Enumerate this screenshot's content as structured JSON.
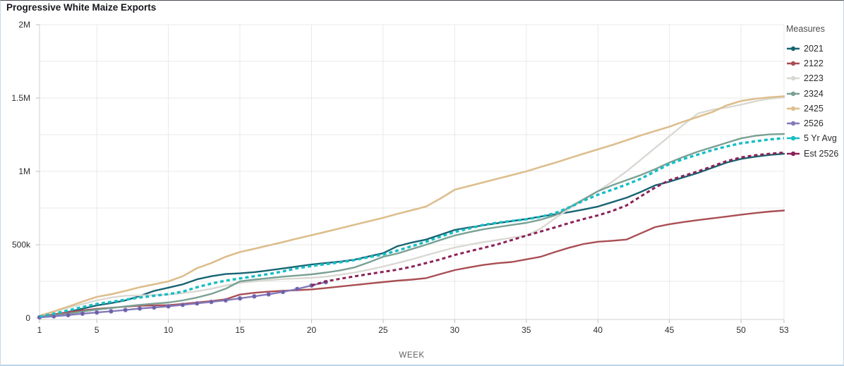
{
  "title": "Progressive White Maize Exports",
  "legend": {
    "title": "Measures",
    "position": "right"
  },
  "chart_data": {
    "type": "line",
    "title": "Progressive White Maize Exports",
    "xlabel": "WEEK",
    "ylabel": "",
    "xlim": [
      1,
      53
    ],
    "ylim": [
      0,
      2000000
    ],
    "grid": true,
    "y_minor_step": 250000,
    "x_gridline_weeks": [
      5,
      10,
      15,
      20,
      25,
      30,
      35,
      40,
      45,
      50,
      53
    ],
    "x_ticks": [
      1,
      5,
      10,
      15,
      20,
      25,
      30,
      35,
      40,
      45,
      50,
      53
    ],
    "y_ticks": [
      {
        "v": 0,
        "label": "0"
      },
      {
        "v": 500000,
        "label": "500k"
      },
      {
        "v": 1000000,
        "label": "1M"
      },
      {
        "v": 1500000,
        "label": "1.5M"
      },
      {
        "v": 2000000,
        "label": "2M"
      }
    ],
    "legend_position": "right",
    "series": [
      {
        "name": "2021",
        "color": "#176472",
        "width": 2.4,
        "dash": "",
        "marker": "",
        "x_start": 1,
        "values": [
          8000,
          22000,
          42000,
          64000,
          86000,
          102000,
          120000,
          150000,
          185000,
          207000,
          230000,
          264000,
          285000,
          300000,
          305000,
          313000,
          325000,
          338000,
          352000,
          365000,
          375000,
          385000,
          398000,
          420000,
          442000,
          490000,
          515000,
          535000,
          568000,
          601000,
          618000,
          632000,
          647000,
          661000,
          675000,
          692000,
          707000,
          722000,
          740000,
          760000,
          790000,
          820000,
          860000,
          905000,
          930000,
          960000,
          990000,
          1025000,
          1060000,
          1085000,
          1100000,
          1112000,
          1120000
        ]
      },
      {
        "name": "2122",
        "color": "#a94e54",
        "width": 2.4,
        "dash": "",
        "marker": "",
        "x_start": 1,
        "values": [
          10000,
          25000,
          40000,
          52000,
          63000,
          70000,
          78000,
          84000,
          86000,
          88000,
          96000,
          106000,
          116000,
          128000,
          160000,
          172000,
          180000,
          186000,
          190000,
          195000,
          205000,
          215000,
          225000,
          235000,
          245000,
          255000,
          262000,
          272000,
          300000,
          327000,
          345000,
          362000,
          374000,
          382000,
          400000,
          418000,
          450000,
          480000,
          505000,
          520000,
          527000,
          535000,
          578000,
          620000,
          640000,
          655000,
          668000,
          680000,
          692000,
          705000,
          716000,
          726000,
          733000
        ]
      },
      {
        "name": "2223",
        "color": "#d9d8d3",
        "width": 2.4,
        "dash": "",
        "marker": "",
        "x_start": 1,
        "values": [
          15000,
          45000,
          70000,
          95000,
          120000,
          140000,
          152000,
          155000,
          157000,
          160000,
          170000,
          182000,
          200000,
          222000,
          240000,
          250000,
          258000,
          266000,
          270000,
          274000,
          282000,
          295000,
          310000,
          330000,
          351000,
          375000,
          400000,
          428000,
          455000,
          481000,
          500000,
          518000,
          532000,
          548000,
          562000,
          610000,
          680000,
          745000,
          805000,
          865000,
          930000,
          1000000,
          1080000,
          1160000,
          1240000,
          1320000,
          1395000,
          1420000,
          1435000,
          1455000,
          1478000,
          1495000,
          1505000
        ]
      },
      {
        "name": "2324",
        "color": "#7aa094",
        "width": 2.4,
        "dash": "",
        "marker": "",
        "x_start": 1,
        "values": [
          8000,
          18000,
          30000,
          44000,
          58000,
          68000,
          80000,
          90000,
          98000,
          106000,
          120000,
          140000,
          165000,
          200000,
          250000,
          262000,
          272000,
          282000,
          290000,
          298000,
          310000,
          325000,
          345000,
          380000,
          418000,
          440000,
          470000,
          500000,
          532000,
          563000,
          585000,
          605000,
          620000,
          635000,
          649000,
          670000,
          700000,
          755000,
          810000,
          865000,
          905000,
          940000,
          975000,
          1015000,
          1060000,
          1100000,
          1135000,
          1165000,
          1195000,
          1225000,
          1243000,
          1252000,
          1255000
        ]
      },
      {
        "name": "2425",
        "color": "#ddbe8d",
        "width": 2.6,
        "dash": "",
        "marker": "",
        "x_start": 1,
        "values": [
          15000,
          45000,
          78000,
          112000,
          144000,
          162000,
          185000,
          210000,
          230000,
          250000,
          285000,
          340000,
          375000,
          418000,
          450000,
          472000,
          495000,
          518000,
          542000,
          565000,
          588000,
          612000,
          636000,
          660000,
          683000,
          710000,
          735000,
          760000,
          815000,
          875000,
          900000,
          925000,
          950000,
          975000,
          1000000,
          1030000,
          1058000,
          1090000,
          1120000,
          1150000,
          1180000,
          1212000,
          1245000,
          1275000,
          1305000,
          1340000,
          1372000,
          1405000,
          1450000,
          1480000,
          1495000,
          1505000,
          1512000
        ]
      },
      {
        "name": "2526",
        "color": "#8479ba",
        "width": 2.4,
        "dash": "",
        "marker": "circle",
        "marker_fill": "#6a5da6",
        "x_start": 1,
        "values": [
          5000,
          12000,
          20000,
          30000,
          38000,
          46000,
          55000,
          65000,
          72000,
          80000,
          90000,
          100000,
          110000,
          121000,
          134000,
          148000,
          162000,
          178000,
          198000,
          222000,
          245000
        ]
      },
      {
        "name": "5 Yr Avg",
        "color": "#17bec6",
        "width": 3.4,
        "dash": "5 4",
        "marker": "",
        "x_start": 1,
        "values": [
          10000,
          30000,
          52000,
          75000,
          96000,
          110000,
          125000,
          140000,
          152000,
          163000,
          180000,
          210000,
          235000,
          255000,
          270000,
          285000,
          300000,
          318000,
          340000,
          355000,
          368000,
          380000,
          395000,
          415000,
          433000,
          460000,
          490000,
          520000,
          555000,
          587000,
          610000,
          635000,
          650000,
          662000,
          673000,
          690000,
          715000,
          755000,
          800000,
          841000,
          875000,
          910000,
          950000,
          1000000,
          1050000,
          1085000,
          1115000,
          1145000,
          1170000,
          1192000,
          1205000,
          1218000,
          1226000
        ]
      },
      {
        "name": "Est 2526",
        "color": "#8b2257",
        "width": 3,
        "dash": "5 4",
        "marker": "",
        "x_start": 20,
        "values": [
          222000,
          250000,
          268000,
          284000,
          300000,
          315000,
          330000,
          350000,
          375000,
          400000,
          430000,
          455000,
          478000,
          503000,
          532000,
          562000,
          590000,
          618000,
          648000,
          675000,
          700000,
          730000,
          768000,
          830000,
          890000,
          940000,
          970000,
          1000000,
          1035000,
          1070000,
          1095000,
          1110000,
          1120000,
          1128000
        ]
      }
    ]
  }
}
